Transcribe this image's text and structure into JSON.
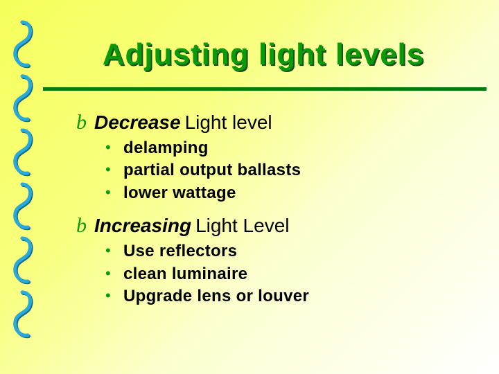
{
  "slide": {
    "title": "Adjusting light levels",
    "background_gradient_from": "#f5ff5a",
    "background_gradient_to": "#ffffff",
    "title_color": "#0a9a0a",
    "title_shadow": "#1a4d1a",
    "underline_color": "#0a7a0a",
    "bullet_color": "#0a9a0a",
    "title_fontsize": 44,
    "heading_fontsize": 28,
    "subitem_fontsize": 24
  },
  "sections": [
    {
      "marker": "b",
      "heading_bold": "Decrease",
      "heading_rest": "Light level",
      "items": [
        "delamping",
        "partial output ballasts",
        "lower wattage"
      ]
    },
    {
      "marker": "b",
      "heading_bold": "Increasing",
      "heading_rest": "Light Level",
      "items": [
        "Use reflectors",
        "clean luminaire",
        "Upgrade lens or louver"
      ]
    }
  ],
  "spiral": {
    "count": 6,
    "stroke": "#2aa8d8",
    "shadow": "#0e6a8a",
    "stroke_width": 5
  }
}
